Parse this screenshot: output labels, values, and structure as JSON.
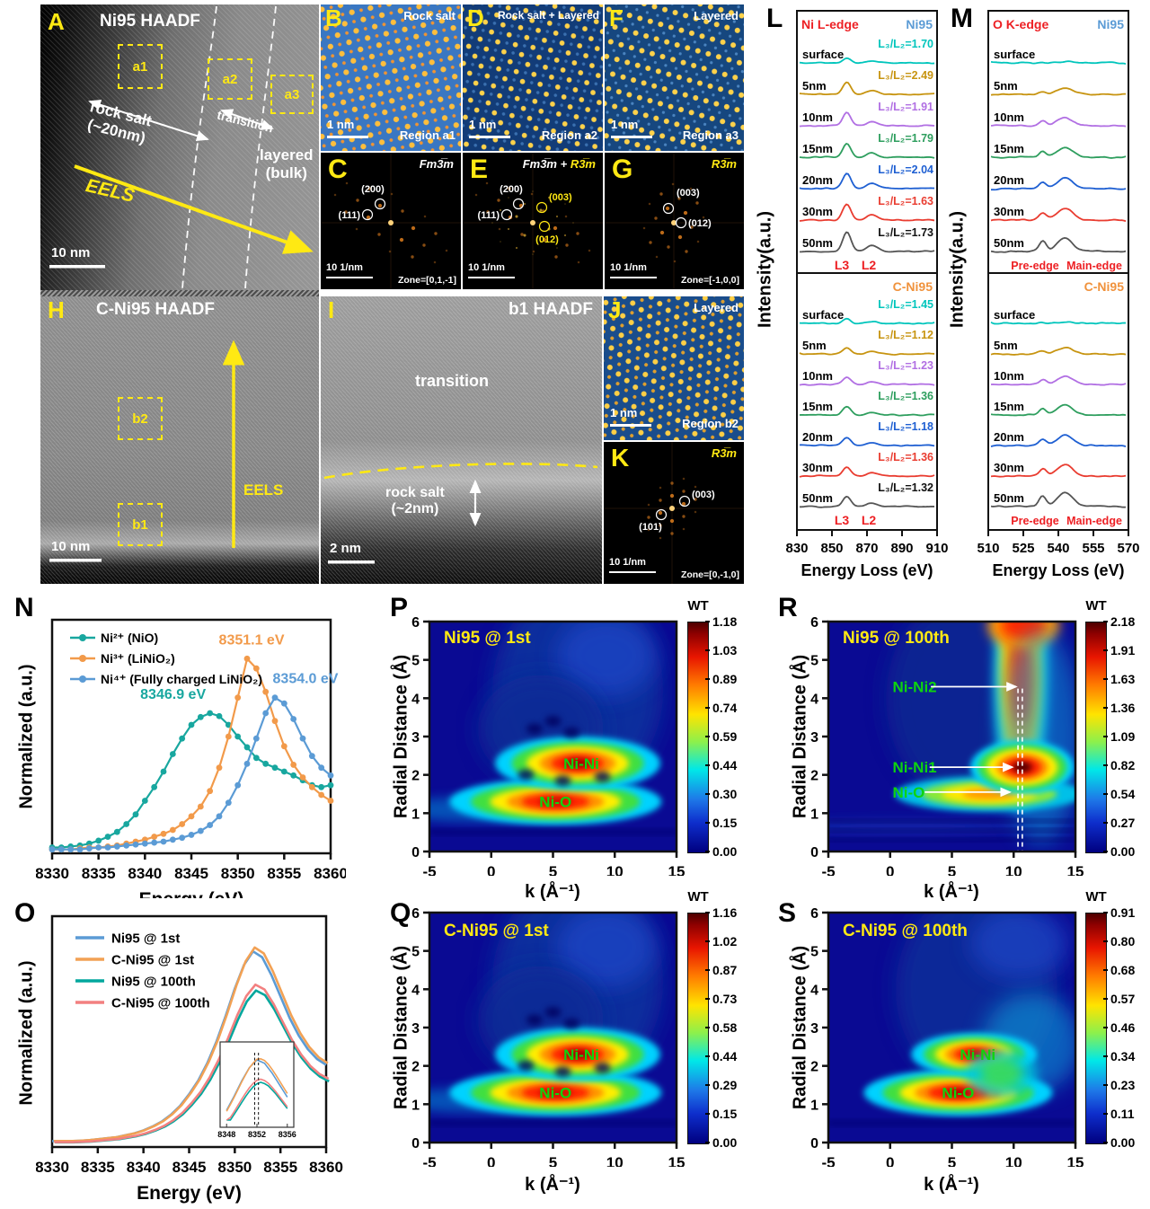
{
  "panelA": {
    "letter": "A",
    "title": "Ni95 HAADF",
    "box_a1": "a1",
    "box_a2": "a2",
    "box_a3": "a3",
    "rock_salt_line1": "rock salt",
    "rock_salt_line2": "(~20nm)",
    "transition": "transition",
    "layered_line1": "layered",
    "layered_line2": "(bulk)",
    "eels": "EELS",
    "scalebar": "10 nm"
  },
  "panelB": {
    "letter": "B",
    "phase": "Rock salt",
    "scalebar": "1 nm",
    "region": "Region a1"
  },
  "panelD": {
    "letter": "D",
    "phase": "Rock salt + Layered",
    "scalebar": "1 nm",
    "region": "Region a2"
  },
  "panelF": {
    "letter": "F",
    "phase": "Layered",
    "scalebar": "1 nm",
    "region": "Region a3"
  },
  "panelC": {
    "letter": "C",
    "symmetry": "Fm3̅m",
    "spot_200": "(200)",
    "spot_111": "(111)",
    "scalebar": "10 1/nm",
    "zone": "Zone=[0,1,-1]"
  },
  "panelE": {
    "letter": "E",
    "symmetry_white": "Fm3̅m",
    "symmetry_plus": " + ",
    "symmetry_yellow": "R3̅m",
    "spot_200": "(200)",
    "spot_111": "(111)",
    "spot_003": "(003)",
    "spot_012": "(012)",
    "scalebar": "10 1/nm"
  },
  "panelG": {
    "letter": "G",
    "symmetry": "R3̅m",
    "spot_003": "(003)",
    "spot_012": "(012)",
    "scalebar": "10 1/nm",
    "zone": "Zone=[-1,0,0]"
  },
  "panelH": {
    "letter": "H",
    "title": "C-Ni95 HAADF",
    "box_b1": "b1",
    "box_b2": "b2",
    "eels": "EELS",
    "scalebar": "10 nm"
  },
  "panelI": {
    "letter": "I",
    "title": "b1 HAADF",
    "transition": "transition",
    "rock_salt_line1": "rock salt",
    "rock_salt_line2": "(~2nm)",
    "scalebar": "2 nm"
  },
  "panelJ": {
    "letter": "J",
    "phase": "Layered",
    "scalebar": "1 nm",
    "region": "Region b2"
  },
  "panelK": {
    "letter": "K",
    "symmetry": "R3̅m",
    "spot_003": "(003)",
    "spot_101": "(101)",
    "scalebar": "10 1/nm",
    "zone": "Zone=[0,-1,0]"
  },
  "panelL": {
    "letter": "L",
    "ylabel": "Intensity(a.u.)",
    "xlabel": "Energy Loss (eV)",
    "xticks": [
      830,
      850,
      870,
      890,
      910
    ],
    "edge_label": "Ni L-edge",
    "sample_top": "Ni95",
    "sample_bottom": "C-Ni95",
    "l3": "L3",
    "l2": "L2",
    "top_curves": [
      {
        "depth": "surface",
        "ratio": "L₃/L₂=1.70",
        "color": "#00c5bc",
        "ratio_color": "#00c5bc"
      },
      {
        "depth": "5nm",
        "ratio": "L₃/L₂=2.49",
        "color": "#c79410",
        "ratio_color": "#c79410"
      },
      {
        "depth": "10nm",
        "ratio": "L₃/L₂=1.91",
        "color": "#b16fe3",
        "ratio_color": "#b16fe3"
      },
      {
        "depth": "15nm",
        "ratio": "L₃/L₂=1.79",
        "color": "#2e9e5e",
        "ratio_color": "#2e9e5e"
      },
      {
        "depth": "20nm",
        "ratio": "L₃/L₂=2.04",
        "color": "#1e5fd2",
        "ratio_color": "#1e5fd2"
      },
      {
        "depth": "30nm",
        "ratio": "L₃/L₂=1.63",
        "color": "#e93c30",
        "ratio_color": "#e93c30"
      },
      {
        "depth": "50nm",
        "ratio": "L₃/L₂=1.73",
        "color": "#555555",
        "ratio_color": "#111111"
      }
    ],
    "bottom_curves": [
      {
        "depth": "surface",
        "ratio": "L₃/L₂=1.45",
        "color": "#00c5bc",
        "ratio_color": "#00c5bc"
      },
      {
        "depth": "5nm",
        "ratio": "L₃/L₂=1.12",
        "color": "#c79410",
        "ratio_color": "#c79410"
      },
      {
        "depth": "10nm",
        "ratio": "L₃/L₂=1.23",
        "color": "#b16fe3",
        "ratio_color": "#b16fe3"
      },
      {
        "depth": "15nm",
        "ratio": "L₃/L₂=1.36",
        "color": "#2e9e5e",
        "ratio_color": "#2e9e5e"
      },
      {
        "depth": "20nm",
        "ratio": "L₃/L₂=1.18",
        "color": "#1e5fd2",
        "ratio_color": "#1e5fd2"
      },
      {
        "depth": "30nm",
        "ratio": "L₃/L₂=1.36",
        "color": "#e93c30",
        "ratio_color": "#e93c30"
      },
      {
        "depth": "50nm",
        "ratio": "L₃/L₂=1.32",
        "color": "#555555",
        "ratio_color": "#111111"
      }
    ]
  },
  "panelM": {
    "letter": "M",
    "ylabel": "Intensity(a.u.)",
    "xlabel": "Energy Loss (eV)",
    "xticks": [
      510,
      525,
      540,
      555,
      570
    ],
    "edge_label": "O K-edge",
    "sample_top": "Ni95",
    "sample_bottom": "C-Ni95",
    "footer_pre": "Pre-edge",
    "footer_main": "Main-edge",
    "curves": [
      {
        "depth": "surface",
        "color": "#00c5bc"
      },
      {
        "depth": "5nm",
        "color": "#c79410"
      },
      {
        "depth": "10nm",
        "color": "#b16fe3"
      },
      {
        "depth": "15nm",
        "color": "#2e9e5e"
      },
      {
        "depth": "20nm",
        "color": "#1e5fd2"
      },
      {
        "depth": "30nm",
        "color": "#e93c30"
      },
      {
        "depth": "50nm",
        "color": "#555555"
      }
    ]
  },
  "chart_data": [
    {
      "id": "N",
      "type": "line",
      "letter": "N",
      "xlabel": "Energy (eV)",
      "ylabel": "Normalized (a.u.)",
      "xlim": [
        8330,
        8360
      ],
      "xticks": [
        8330,
        8335,
        8340,
        8345,
        8350,
        8355,
        8360
      ],
      "x_start": 8330,
      "x_step": 1,
      "grid": false,
      "legend_position": "top-left",
      "markers": true,
      "series": [
        {
          "name": "Ni²⁺ (NiO)",
          "color": "#18a79f",
          "peak_label": "8346.9 eV",
          "peak_x": 8346.9,
          "y": [
            0.03,
            0.03,
            0.035,
            0.04,
            0.05,
            0.065,
            0.085,
            0.11,
            0.15,
            0.2,
            0.27,
            0.34,
            0.42,
            0.51,
            0.59,
            0.66,
            0.7,
            0.72,
            0.705,
            0.66,
            0.6,
            0.545,
            0.49,
            0.46,
            0.44,
            0.42,
            0.4,
            0.375,
            0.35,
            0.34,
            0.35
          ]
        },
        {
          "name": "Ni³⁺ (LiNiO₂)",
          "color": "#f29a4a",
          "peak_label": "8351.1 eV",
          "peak_x": 8351.1,
          "y": [
            0.02,
            0.02,
            0.02,
            0.025,
            0.03,
            0.03,
            0.035,
            0.04,
            0.05,
            0.06,
            0.07,
            0.085,
            0.1,
            0.12,
            0.15,
            0.19,
            0.24,
            0.32,
            0.44,
            0.6,
            0.8,
            1.0,
            0.95,
            0.83,
            0.68,
            0.55,
            0.455,
            0.39,
            0.34,
            0.3,
            0.27
          ]
        },
        {
          "name": "Ni⁴⁺ (Fully charged LiNiO₂)",
          "color": "#5b9bd5",
          "peak_label": "8354.0 eV",
          "peak_x": 8354.0,
          "y": [
            0.02,
            0.02,
            0.02,
            0.02,
            0.025,
            0.03,
            0.03,
            0.035,
            0.04,
            0.045,
            0.05,
            0.055,
            0.06,
            0.07,
            0.08,
            0.095,
            0.115,
            0.145,
            0.19,
            0.26,
            0.35,
            0.46,
            0.59,
            0.72,
            0.8,
            0.77,
            0.69,
            0.59,
            0.5,
            0.44,
            0.4
          ]
        }
      ]
    },
    {
      "id": "O",
      "type": "line",
      "letter": "O",
      "xlabel": "Energy (eV)",
      "ylabel": "Normalized (a.u.)",
      "xlim": [
        8330,
        8360
      ],
      "xticks": [
        8330,
        8335,
        8340,
        8345,
        8350,
        8355,
        8360
      ],
      "x_start": 8330,
      "x_step": 1,
      "markers": false,
      "legend_position": "top-left",
      "base_y": [
        0.03,
        0.03,
        0.03,
        0.032,
        0.035,
        0.04,
        0.045,
        0.05,
        0.06,
        0.07,
        0.085,
        0.105,
        0.13,
        0.165,
        0.21,
        0.27,
        0.34,
        0.43,
        0.54,
        0.67,
        0.81,
        0.93,
        1.0,
        0.97,
        0.88,
        0.77,
        0.66,
        0.57,
        0.5,
        0.45,
        0.42
      ],
      "series": [
        {
          "name": "Ni95 @ 1st",
          "color": "#5b9bd5",
          "scale": 1.0
        },
        {
          "name": "C-Ni95 @ 1st",
          "color": "#f2a154",
          "scale": 1.02
        },
        {
          "name": "Ni95 @ 100th",
          "color": "#00a79d",
          "scale": 0.8
        },
        {
          "name": "C-Ni95 @ 100th",
          "color": "#f28080",
          "scale": 0.83
        }
      ],
      "inset": {
        "xticks": [
          8348,
          8352,
          8356
        ],
        "dashed_x": [
          8351.7,
          8352.2
        ]
      }
    },
    {
      "id": "P",
      "type": "heatmap",
      "letter": "P",
      "title": "Ni95 @ 1st",
      "xlabel": "k (Å⁻¹)",
      "ylabel": "Radial Distance (Å)",
      "xlim": [
        -5,
        15
      ],
      "ylim": [
        0,
        6
      ],
      "xticks": [
        -5,
        0,
        5,
        10,
        15
      ],
      "yticks": [
        0,
        1,
        2,
        3,
        4,
        5,
        6
      ],
      "colorbar_title": "WT",
      "colorbar_ticks": [
        "1.18",
        "1.03",
        "0.89",
        "0.74",
        "0.59",
        "0.44",
        "0.30",
        "0.15",
        "0.00"
      ],
      "peaks": [
        {
          "label": "Ni-Ni",
          "k": 7.0,
          "r": 2.3,
          "wt": 1.18
        },
        {
          "label": "Ni-O",
          "k": 5.2,
          "r": 1.3,
          "wt": 1.0
        }
      ]
    },
    {
      "id": "Q",
      "type": "heatmap",
      "letter": "Q",
      "title": "C-Ni95 @ 1st",
      "xlabel": "k (Å⁻¹)",
      "ylabel": "Radial Distance (Å)",
      "xlim": [
        -5,
        15
      ],
      "ylim": [
        0,
        6
      ],
      "xticks": [
        -5,
        0,
        5,
        10,
        15
      ],
      "yticks": [
        0,
        1,
        2,
        3,
        4,
        5,
        6
      ],
      "colorbar_title": "WT",
      "colorbar_ticks": [
        "1.16",
        "1.02",
        "0.87",
        "0.73",
        "0.58",
        "0.44",
        "0.29",
        "0.15",
        "0.00"
      ],
      "peaks": [
        {
          "label": "Ni-Ni",
          "k": 7.0,
          "r": 2.3,
          "wt": 1.16
        },
        {
          "label": "Ni-O",
          "k": 5.2,
          "r": 1.3,
          "wt": 1.0
        }
      ]
    },
    {
      "id": "R",
      "type": "heatmap",
      "letter": "R",
      "title": "Ni95 @ 100th",
      "xlabel": "k (Å⁻¹)",
      "ylabel": "Radial Distance (Å)",
      "xlim": [
        -5,
        15
      ],
      "ylim": [
        0,
        6
      ],
      "xticks": [
        -5,
        0,
        5,
        10,
        15
      ],
      "yticks": [
        0,
        1,
        2,
        3,
        4,
        5,
        6
      ],
      "colorbar_title": "WT",
      "colorbar_ticks": [
        "2.18",
        "1.91",
        "1.63",
        "1.36",
        "1.09",
        "0.82",
        "0.54",
        "0.27",
        "0.00"
      ],
      "peaks": [
        {
          "label": "Ni-Ni2",
          "k": 10.6,
          "r": 4.3,
          "wt": 1.9
        },
        {
          "label": "Ni-Ni1",
          "k": 10.6,
          "r": 2.2,
          "wt": 2.18
        },
        {
          "label": "Ni-O",
          "k": 10.3,
          "r": 1.5,
          "wt": 1.4
        }
      ]
    },
    {
      "id": "S",
      "type": "heatmap",
      "letter": "S",
      "title": "C-Ni95 @ 100th",
      "xlabel": "k (Å⁻¹)",
      "ylabel": "Radial Distance (Å)",
      "xlim": [
        -5,
        15
      ],
      "ylim": [
        0,
        6
      ],
      "xticks": [
        -5,
        0,
        5,
        10,
        15
      ],
      "yticks": [
        0,
        1,
        2,
        3,
        4,
        5,
        6
      ],
      "colorbar_title": "WT",
      "colorbar_ticks": [
        "0.91",
        "0.80",
        "0.68",
        "0.57",
        "0.46",
        "0.34",
        "0.23",
        "0.11",
        "0.00"
      ],
      "peaks": [
        {
          "label": "Ni-Ni",
          "k": 6.8,
          "r": 2.3,
          "wt": 0.85
        },
        {
          "label": "Ni-O",
          "k": 5.5,
          "r": 1.3,
          "wt": 0.91
        }
      ]
    }
  ],
  "colors": {
    "ni95_blue": "#5b9bd5",
    "cni95_orange": "#f0923c",
    "edge_red": "#ed2024",
    "green_label": "#0ed40e",
    "yellow_annot": "#ffe913"
  }
}
